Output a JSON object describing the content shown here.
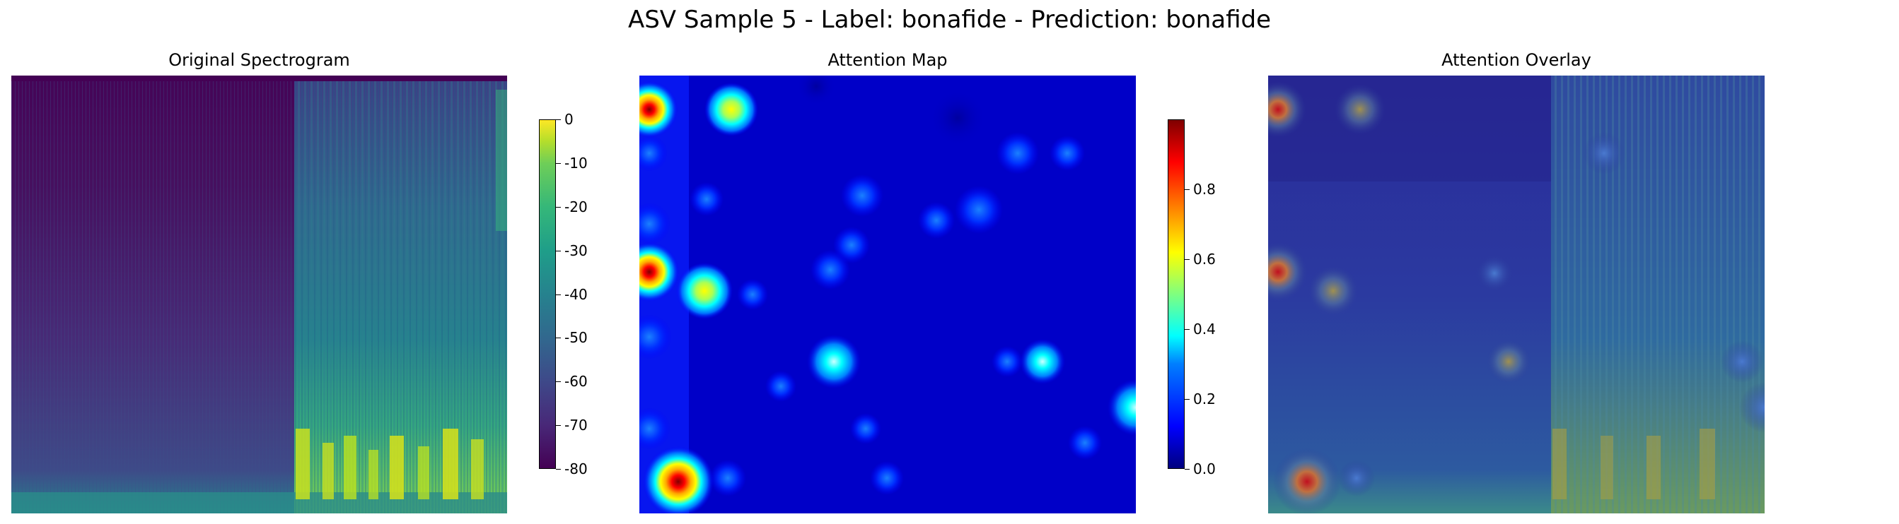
{
  "figure": {
    "suptitle": "ASV Sample 5 - Label: bonafide - Prediction: bonafide"
  },
  "chart_data": [
    {
      "type": "heatmap",
      "title": "Original Spectrogram",
      "colormap": "viridis",
      "axes": "off",
      "colorbar": {
        "ticks": [
          "0",
          "-10",
          "-20",
          "-30",
          "-40",
          "-50",
          "-60",
          "-70",
          "-80"
        ],
        "range": [
          -80,
          0
        ]
      }
    },
    {
      "type": "heatmap",
      "title": "Attention Map",
      "colormap": "jet",
      "axes": "off",
      "colorbar": {
        "ticks": [
          "0.8",
          "0.6",
          "0.4",
          "0.2",
          "0.0"
        ],
        "range": [
          0.0,
          1.0
        ]
      },
      "hotspots": [
        {
          "x": 0.02,
          "y": 0.08,
          "value": 0.85
        },
        {
          "x": 0.18,
          "y": 0.08,
          "value": 0.6
        },
        {
          "x": 0.02,
          "y": 0.45,
          "value": 0.85
        },
        {
          "x": 0.13,
          "y": 0.49,
          "value": 0.5
        },
        {
          "x": 0.39,
          "y": 0.65,
          "value": 0.45
        },
        {
          "x": 0.81,
          "y": 0.65,
          "value": 0.35
        },
        {
          "x": 0.08,
          "y": 0.93,
          "value": 0.95
        },
        {
          "x": 1.0,
          "y": 0.76,
          "value": 0.35
        },
        {
          "x": 0.76,
          "y": 0.18,
          "value": 0.25
        }
      ]
    },
    {
      "type": "heatmap",
      "title": "Attention Overlay",
      "colormap": "jet over viridis",
      "axes": "off"
    }
  ]
}
